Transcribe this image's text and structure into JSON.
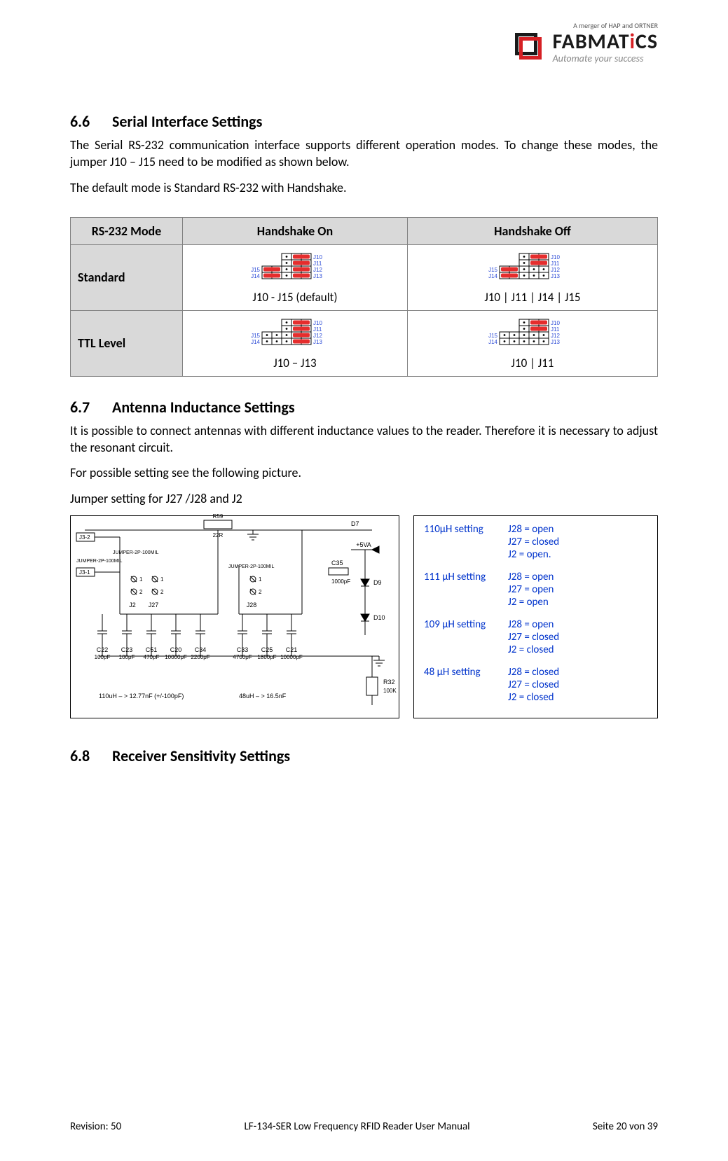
{
  "header": {
    "merger_note": "A merger of HAP and ORTNER",
    "logo_name_a": "FABMAT",
    "logo_name_i": "i",
    "logo_name_b": "CS",
    "logo_tagline": "Automate your success"
  },
  "colors": {
    "brand_red": "#d62024",
    "brand_dark": "#1a1a1a",
    "table_header_bg": "#d9d9d9",
    "table_border": "#808080",
    "jumper_closed": "#e52d2d",
    "jumper_label": "#2a49d6",
    "link_blue": "#0033cc"
  },
  "section66": {
    "num": "6.6",
    "title": "Serial Interface Settings",
    "p1": "The Serial RS-232 communication interface supports different operation modes. To change these modes, the jumper J10 – J15 need to be modified as shown below.",
    "p2": "The default mode is Standard RS-232 with Handshake."
  },
  "rs232_table": {
    "col_mode": "RS-232 Mode",
    "col_hs_on": "Handshake On",
    "col_hs_off": "Handshake Off",
    "row_standard": "Standard",
    "row_ttl": "TTL Level",
    "jumper_rows": [
      "J10",
      "J11",
      "J12",
      "J13"
    ],
    "jumper_sidelabels": [
      "J15",
      "J14"
    ],
    "cells": {
      "std_on": {
        "closed": [
          "J10",
          "J11",
          "J12",
          "J13",
          "J14",
          "J15"
        ],
        "caption": "J10 - J15 (default)"
      },
      "std_off": {
        "closed": [
          "J10",
          "J11",
          "J14",
          "J15"
        ],
        "caption": "J10 | J11 | J14 | J15"
      },
      "ttl_on": {
        "closed": [
          "J10",
          "J11",
          "J12",
          "J13"
        ],
        "caption": "J10 – J13"
      },
      "ttl_off": {
        "closed": [
          "J10",
          "J11"
        ],
        "caption": "J10 | J11"
      }
    }
  },
  "section67": {
    "num": "6.7",
    "title": "Antenna Inductance Settings",
    "p1": "It is possible to connect antennas with different inductance values to the reader. Therefore it is necessary to adjust the resonant circuit.",
    "p2": "For possible setting see the following picture.",
    "p3": "Jumper setting for J27 /J28 and J2"
  },
  "schematic": {
    "parts_top": [
      "R59",
      "22R",
      "D7"
    ],
    "rails": [
      "+5VA"
    ],
    "left_conn": [
      "J3-2",
      "J3-1"
    ],
    "jumper_labels": [
      "JUMPER-2P-100MIL",
      "JUMPER-2P-100MIL",
      "JUMPER-2P-100MIL"
    ],
    "jumpers": [
      "J2",
      "J27",
      "J28"
    ],
    "caps_c35": "C35",
    "caps_c35_val": "1000pF",
    "diodes": [
      "D9",
      "D10"
    ],
    "res_r32": "R32",
    "res_r32_val": "100K",
    "bottom_caps_left": [
      {
        "ref": "C22",
        "val": "100pF"
      },
      {
        "ref": "C23",
        "val": "100pF"
      },
      {
        "ref": "C51",
        "val": "470pF"
      },
      {
        "ref": "C20",
        "val": "10000pF"
      },
      {
        "ref": "C34",
        "val": "2200pF"
      }
    ],
    "bottom_caps_right": [
      {
        "ref": "C33",
        "val": "4700pF"
      },
      {
        "ref": "C25",
        "val": "1800pF"
      },
      {
        "ref": "C21",
        "val": "10000pF"
      }
    ],
    "footnote_left": "110uH  –  >  12.77nF  (+/-100pF)",
    "footnote_right": "48uH  –  >  16.5nF"
  },
  "settings_list": [
    {
      "label": "110µH setting",
      "lines": [
        "J28 = open",
        "J27 = closed",
        "J2 = open."
      ]
    },
    {
      "label": "111 µH setting",
      "lines": [
        "J28 = open",
        "J27 = open",
        "J2 = open"
      ]
    },
    {
      "label": "109 µH setting",
      "lines": [
        "J28 = open",
        "J27 = closed",
        "J2 = closed"
      ]
    },
    {
      "label": "48 µH setting",
      "lines": [
        "J28 = closed",
        "J27 = closed",
        "J2 = closed"
      ]
    }
  ],
  "section68": {
    "num": "6.8",
    "title": "Receiver Sensitivity Settings"
  },
  "footer": {
    "left": "Revision: 50",
    "center": "LF-134-SER Low Frequency RFID Reader User Manual",
    "right": "Seite 20 von 39"
  }
}
